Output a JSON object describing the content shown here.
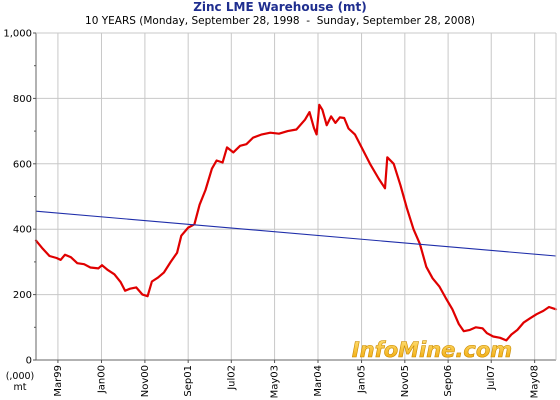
{
  "chart_data": {
    "type": "line",
    "title": "Zinc LME Warehouse (mt)",
    "subtitle": "10 YEARS (Monday, September 28, 1998  -  Sunday, September 28, 2008)",
    "xlabel": "",
    "ylabel_lines": [
      "(,000)",
      "mt"
    ],
    "xlim": [
      "1998-09-28",
      "2008-09-28"
    ],
    "ylim": [
      0,
      1000
    ],
    "y_ticks": [
      0,
      200,
      400,
      600,
      800,
      1000
    ],
    "y_tick_labels": [
      "0",
      "200",
      "400",
      "600",
      "800",
      "1,000"
    ],
    "x_ticks": [
      {
        "label": "Mar99",
        "date": "1999-03-01"
      },
      {
        "label": "Jan00",
        "date": "2000-01-01"
      },
      {
        "label": "Nov00",
        "date": "2000-11-01"
      },
      {
        "label": "Sep01",
        "date": "2001-09-01"
      },
      {
        "label": "Jul02",
        "date": "2002-07-01"
      },
      {
        "label": "May03",
        "date": "2003-05-01"
      },
      {
        "label": "Mar04",
        "date": "2004-03-01"
      },
      {
        "label": "Jan05",
        "date": "2005-01-01"
      },
      {
        "label": "Nov05",
        "date": "2005-11-01"
      },
      {
        "label": "Sep06",
        "date": "2006-09-01"
      },
      {
        "label": "Jul07",
        "date": "2007-07-01"
      },
      {
        "label": "May08",
        "date": "2008-05-01"
      }
    ],
    "grid": true,
    "series": [
      {
        "style": "price",
        "color": "#e00000",
        "points": [
          [
            "1998-09-28",
            365
          ],
          [
            "1998-11-15",
            340
          ],
          [
            "1999-01-01",
            318
          ],
          [
            "1999-02-20",
            312
          ],
          [
            "1999-03-20",
            306
          ],
          [
            "1999-04-20",
            322
          ],
          [
            "1999-06-01",
            314
          ],
          [
            "1999-07-15",
            296
          ],
          [
            "1999-09-01",
            293
          ],
          [
            "1999-10-15",
            283
          ],
          [
            "1999-12-10",
            280
          ],
          [
            "2000-01-05",
            290
          ],
          [
            "2000-02-15",
            275
          ],
          [
            "2000-04-01",
            262
          ],
          [
            "2000-05-15",
            238
          ],
          [
            "2000-06-15",
            212
          ],
          [
            "2000-07-20",
            218
          ],
          [
            "2000-09-01",
            222
          ],
          [
            "2000-10-15",
            200
          ],
          [
            "2000-11-20",
            195
          ],
          [
            "2000-12-20",
            240
          ],
          [
            "2001-02-01",
            252
          ],
          [
            "2001-03-15",
            268
          ],
          [
            "2001-05-01",
            300
          ],
          [
            "2001-06-15",
            328
          ],
          [
            "2001-07-15",
            380
          ],
          [
            "2001-09-01",
            405
          ],
          [
            "2001-10-15",
            415
          ],
          [
            "2001-11-20",
            475
          ],
          [
            "2002-01-01",
            520
          ],
          [
            "2002-02-15",
            585
          ],
          [
            "2002-03-20",
            610
          ],
          [
            "2002-05-01",
            604
          ],
          [
            "2002-06-01",
            650
          ],
          [
            "2002-07-15",
            635
          ],
          [
            "2002-09-01",
            655
          ],
          [
            "2002-10-15",
            660
          ],
          [
            "2002-12-01",
            680
          ],
          [
            "2003-02-01",
            690
          ],
          [
            "2003-04-01",
            695
          ],
          [
            "2003-06-01",
            692
          ],
          [
            "2003-08-01",
            700
          ],
          [
            "2003-10-01",
            705
          ],
          [
            "2003-12-01",
            735
          ],
          [
            "2004-01-01",
            758
          ],
          [
            "2004-02-01",
            710
          ],
          [
            "2004-02-20",
            690
          ],
          [
            "2004-03-10",
            780
          ],
          [
            "2004-04-01",
            765
          ],
          [
            "2004-05-01",
            718
          ],
          [
            "2004-06-01",
            745
          ],
          [
            "2004-07-01",
            725
          ],
          [
            "2004-08-01",
            742
          ],
          [
            "2004-09-01",
            740
          ],
          [
            "2004-10-01",
            708
          ],
          [
            "2004-11-15",
            690
          ],
          [
            "2005-01-01",
            650
          ],
          [
            "2005-03-01",
            600
          ],
          [
            "2005-05-01",
            555
          ],
          [
            "2005-06-15",
            525
          ],
          [
            "2005-07-01",
            620
          ],
          [
            "2005-08-15",
            600
          ],
          [
            "2005-10-01",
            535
          ],
          [
            "2005-11-15",
            465
          ],
          [
            "2006-01-01",
            400
          ],
          [
            "2006-02-15",
            355
          ],
          [
            "2006-04-01",
            285
          ],
          [
            "2006-05-15",
            250
          ],
          [
            "2006-07-01",
            225
          ],
          [
            "2006-08-15",
            190
          ],
          [
            "2006-10-01",
            155
          ],
          [
            "2006-11-15",
            110
          ],
          [
            "2006-12-20",
            88
          ],
          [
            "2007-02-01",
            92
          ],
          [
            "2007-03-15",
            100
          ],
          [
            "2007-05-01",
            97
          ],
          [
            "2007-06-01",
            82
          ],
          [
            "2007-07-15",
            72
          ],
          [
            "2007-09-01",
            68
          ],
          [
            "2007-10-15",
            60
          ],
          [
            "2007-11-20",
            78
          ],
          [
            "2008-01-01",
            92
          ],
          [
            "2008-02-15",
            115
          ],
          [
            "2008-04-01",
            128
          ],
          [
            "2008-05-15",
            140
          ],
          [
            "2008-07-01",
            150
          ],
          [
            "2008-08-10",
            162
          ],
          [
            "2008-09-28",
            155
          ]
        ]
      },
      {
        "style": "trend",
        "color": "#1f2eaa",
        "points": [
          [
            "1998-09-28",
            455
          ],
          [
            "2008-09-28",
            318
          ]
        ]
      }
    ],
    "watermark": "InfoMine.com"
  }
}
